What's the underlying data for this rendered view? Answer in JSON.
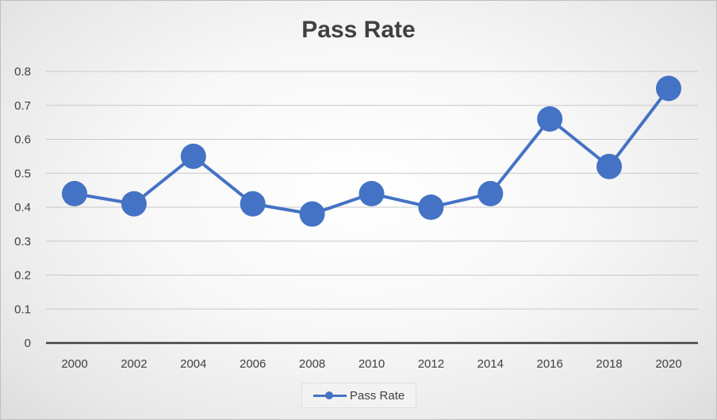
{
  "chart_data": {
    "type": "line",
    "title": "Pass Rate",
    "xlabel": "",
    "ylabel": "",
    "x": [
      "2000",
      "2002",
      "2004",
      "2006",
      "2008",
      "2010",
      "2012",
      "2014",
      "2016",
      "2018",
      "2020"
    ],
    "series": [
      {
        "name": "Pass Rate",
        "values": [
          0.44,
          0.41,
          0.55,
          0.41,
          0.38,
          0.44,
          0.4,
          0.44,
          0.66,
          0.52,
          0.75
        ],
        "color": "#4472c4"
      }
    ],
    "ylim": [
      0,
      0.8
    ],
    "yticks": [
      "0",
      "0.1",
      "0.2",
      "0.3",
      "0.4",
      "0.5",
      "0.6",
      "0.7",
      "0.8"
    ],
    "grid": true,
    "legend": "bottom"
  }
}
